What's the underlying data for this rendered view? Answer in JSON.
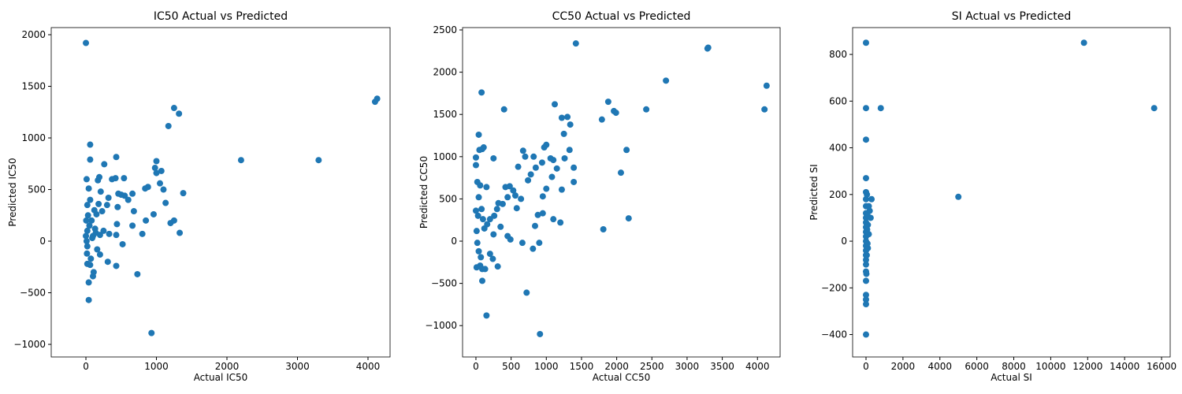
{
  "chart_data": [
    {
      "type": "scatter",
      "title": "IC50 Actual vs Predicted",
      "x_label": "Actual IC50",
      "y_label": "Predicted IC50",
      "color": "#1f77b4",
      "xlim": [
        -492,
        4313
      ],
      "ylim": [
        -1122,
        2069
      ],
      "xticks": [
        0,
        1000,
        2000,
        3000,
        4000
      ],
      "yticks": [
        {
          "value": -1000,
          "label": "−1000"
        },
        {
          "value": -500,
          "label": "−500"
        },
        0,
        500,
        1000,
        1500,
        2000
      ],
      "x": [
        0,
        4100,
        4130,
        2200,
        3300,
        1250,
        1320,
        1170,
        60,
        430,
        1000,
        980,
        1070,
        1000,
        1050,
        1100,
        1380,
        1130,
        1250,
        1200,
        1330,
        960,
        880,
        840,
        850,
        800,
        680,
        660,
        600,
        540,
        420,
        370,
        260,
        210,
        190,
        170,
        60,
        10,
        40,
        460,
        500,
        550,
        660,
        450,
        320,
        300,
        440,
        430,
        330,
        250,
        200,
        130,
        100,
        80,
        30,
        20,
        60,
        120,
        150,
        180,
        230,
        20,
        10,
        20,
        15,
        20,
        60,
        70,
        110,
        100,
        40,
        40,
        160,
        200,
        310,
        430,
        520,
        730,
        930,
        50,
        90,
        140,
        0,
        5
      ],
      "values": [
        1920,
        1350,
        1380,
        785,
        785,
        1290,
        1235,
        1115,
        935,
        815,
        775,
        710,
        680,
        660,
        560,
        500,
        465,
        370,
        200,
        175,
        80,
        260,
        525,
        510,
        200,
        70,
        290,
        150,
        400,
        610,
        610,
        600,
        745,
        480,
        620,
        590,
        790,
        600,
        510,
        460,
        450,
        440,
        460,
        330,
        420,
        350,
        165,
        60,
        70,
        100,
        60,
        120,
        50,
        200,
        250,
        350,
        400,
        300,
        260,
        360,
        290,
        100,
        0,
        -50,
        -120,
        -220,
        -230,
        -170,
        -300,
        -340,
        -400,
        -570,
        -80,
        -130,
        -200,
        -240,
        -30,
        -320,
        -890,
        150,
        30,
        80,
        50,
        200
      ]
    },
    {
      "type": "scatter",
      "title": "CC50 Actual vs Predicted",
      "x_label": "Actual CC50",
      "y_label": "Predicted CC50",
      "color": "#1f77b4",
      "xlim": [
        -190,
        4322
      ],
      "ylim": [
        -1371,
        2528
      ],
      "xticks": [
        0,
        500,
        1000,
        1500,
        2000,
        2500,
        3000,
        3500,
        4000
      ],
      "yticks": [
        {
          "value": -1000,
          "label": "−1000"
        },
        {
          "value": -500,
          "label": "−500"
        },
        0,
        500,
        1000,
        1500,
        2000,
        2500
      ],
      "x": [
        1420,
        3300,
        3290,
        2700,
        4130,
        4100,
        2420,
        1880,
        1960,
        1990,
        1790,
        2140,
        2060,
        2170,
        1810,
        80,
        400,
        1120,
        1300,
        1220,
        1340,
        1250,
        40,
        670,
        1000,
        970,
        90,
        50,
        110,
        0,
        0,
        250,
        700,
        820,
        1060,
        1100,
        1150,
        1390,
        1330,
        1260,
        1220,
        1390,
        1200,
        1100,
        950,
        880,
        840,
        780,
        740,
        600,
        480,
        420,
        530,
        450,
        380,
        300,
        320,
        260,
        200,
        160,
        120,
        100,
        80,
        40,
        20,
        60,
        150,
        30,
        10,
        0,
        20,
        40,
        70,
        90,
        90,
        10,
        60,
        130,
        200,
        240,
        310,
        250,
        350,
        450,
        490,
        660,
        720,
        150,
        910,
        810,
        900,
        950,
        1000,
        940,
        850,
        1080,
        560,
        640,
        580
      ],
      "values": [
        2340,
        2290,
        2280,
        1900,
        1840,
        1560,
        1560,
        1650,
        1540,
        1520,
        1440,
        1080,
        810,
        270,
        140,
        1760,
        1560,
        1620,
        1470,
        1460,
        1380,
        1270,
        1260,
        1070,
        1140,
        1110,
        1090,
        1080,
        1110,
        990,
        900,
        980,
        1000,
        1000,
        980,
        960,
        860,
        870,
        1080,
        980,
        610,
        700,
        220,
        260,
        330,
        310,
        180,
        790,
        720,
        880,
        650,
        640,
        600,
        520,
        440,
        380,
        450,
        300,
        260,
        200,
        150,
        260,
        380,
        520,
        700,
        660,
        640,
        300,
        120,
        360,
        -20,
        -120,
        -190,
        -330,
        -470,
        -310,
        -290,
        -330,
        -150,
        -210,
        -300,
        80,
        170,
        60,
        20,
        -20,
        -610,
        -880,
        -1100,
        -90,
        -20,
        530,
        620,
        930,
        870,
        760,
        540,
        500,
        390
      ]
    },
    {
      "type": "scatter",
      "title": "SI Actual vs Predicted",
      "x_label": "Actual SI",
      "y_label": "Predicted SI",
      "color": "#1f77b4",
      "xlim": [
        -725,
        16467
      ],
      "ylim": [
        -496,
        915
      ],
      "xticks": [
        0,
        2000,
        4000,
        6000,
        8000,
        10000,
        12000,
        14000,
        16000
      ],
      "yticks": [
        {
          "value": -400,
          "label": "−400"
        },
        {
          "value": -200,
          "label": "−200"
        },
        0,
        200,
        400,
        600,
        800
      ],
      "x": [
        0,
        11800,
        15600,
        0,
        800,
        5000,
        0,
        0,
        0,
        0,
        0,
        0,
        0,
        0,
        0,
        0,
        0,
        0,
        0,
        0,
        0,
        0,
        0,
        0,
        0,
        0,
        0,
        0,
        0,
        300,
        200,
        150,
        250,
        100,
        60,
        150,
        100,
        80,
        50,
        40,
        80,
        20
      ],
      "values": [
        850,
        850,
        570,
        570,
        570,
        190,
        435,
        270,
        210,
        180,
        150,
        120,
        100,
        80,
        60,
        40,
        20,
        0,
        -20,
        -40,
        -60,
        -80,
        -100,
        -130,
        -170,
        -230,
        -250,
        -270,
        -400,
        180,
        130,
        150,
        100,
        70,
        50,
        30,
        -30,
        -10,
        200,
        -60,
        110,
        -140
      ]
    }
  ]
}
